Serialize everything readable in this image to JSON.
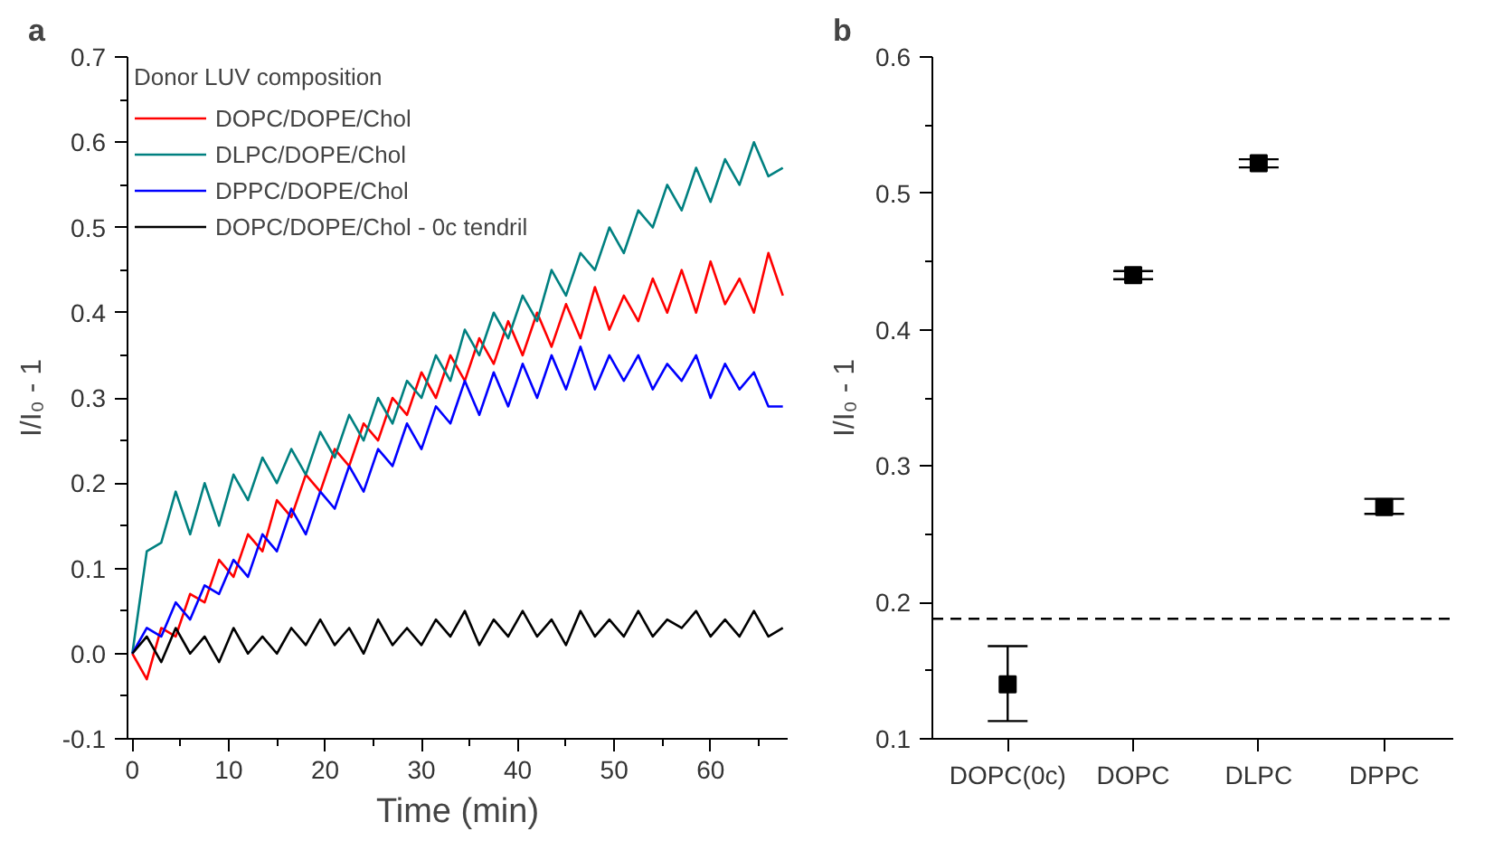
{
  "chart_data": [
    {
      "type": "line",
      "title": "a",
      "xlabel": "Time (min)",
      "ylabel": "I/I₀ - 1",
      "legend_title": "Donor LUV composition",
      "legend": "top left",
      "grid": false,
      "marker": "none",
      "line_style": "solid",
      "x": [
        0,
        1.5,
        3,
        4.5,
        6,
        7.5,
        9,
        10.5,
        12,
        13.5,
        15,
        16.5,
        18,
        19.5,
        21,
        22.5,
        24,
        25.5,
        27,
        28.5,
        30,
        31.5,
        33,
        34.5,
        36,
        37.5,
        39,
        40.5,
        42,
        43.5,
        45,
        46.5,
        48,
        49.5,
        51,
        52.5,
        54,
        55.5,
        57,
        58.5,
        60,
        61.5,
        63,
        64.5,
        66,
        67.5
      ],
      "series": [
        {
          "name": "DOPC/DOPE/Chol",
          "color": "#ff0000",
          "values": [
            0.0,
            -0.03,
            0.03,
            0.02,
            0.07,
            0.06,
            0.11,
            0.09,
            0.14,
            0.12,
            0.18,
            0.16,
            0.21,
            0.19,
            0.24,
            0.22,
            0.27,
            0.25,
            0.3,
            0.28,
            0.33,
            0.3,
            0.35,
            0.32,
            0.37,
            0.34,
            0.39,
            0.35,
            0.4,
            0.36,
            0.41,
            0.37,
            0.43,
            0.38,
            0.42,
            0.39,
            0.44,
            0.4,
            0.45,
            0.4,
            0.46,
            0.41,
            0.44,
            0.4,
            0.47,
            0.42
          ]
        },
        {
          "name": "DLPC/DOPE/Chol",
          "color": "#008080",
          "values": [
            0.0,
            0.12,
            0.13,
            0.19,
            0.14,
            0.2,
            0.15,
            0.21,
            0.18,
            0.23,
            0.2,
            0.24,
            0.21,
            0.26,
            0.23,
            0.28,
            0.25,
            0.3,
            0.27,
            0.32,
            0.3,
            0.35,
            0.32,
            0.38,
            0.35,
            0.4,
            0.37,
            0.42,
            0.39,
            0.45,
            0.42,
            0.47,
            0.45,
            0.5,
            0.47,
            0.52,
            0.5,
            0.55,
            0.52,
            0.57,
            0.53,
            0.58,
            0.55,
            0.6,
            0.56,
            0.57
          ]
        },
        {
          "name": "DPPC/DOPE/Chol",
          "color": "#0000ff",
          "values": [
            0.0,
            0.03,
            0.02,
            0.06,
            0.04,
            0.08,
            0.07,
            0.11,
            0.09,
            0.14,
            0.12,
            0.17,
            0.14,
            0.19,
            0.17,
            0.22,
            0.19,
            0.24,
            0.22,
            0.27,
            0.24,
            0.29,
            0.27,
            0.32,
            0.28,
            0.33,
            0.29,
            0.34,
            0.3,
            0.35,
            0.31,
            0.36,
            0.31,
            0.35,
            0.32,
            0.35,
            0.31,
            0.34,
            0.32,
            0.35,
            0.3,
            0.34,
            0.31,
            0.33,
            0.29,
            0.29
          ]
        },
        {
          "name": "DOPC/DOPE/Chol - 0c tendril",
          "color": "#000000",
          "values": [
            0.0,
            0.02,
            -0.01,
            0.03,
            0.0,
            0.02,
            -0.01,
            0.03,
            0.0,
            0.02,
            0.0,
            0.03,
            0.01,
            0.04,
            0.01,
            0.03,
            0.0,
            0.04,
            0.01,
            0.03,
            0.01,
            0.04,
            0.02,
            0.05,
            0.01,
            0.04,
            0.02,
            0.05,
            0.02,
            0.04,
            0.01,
            0.05,
            0.02,
            0.04,
            0.02,
            0.05,
            0.02,
            0.04,
            0.03,
            0.05,
            0.02,
            0.04,
            0.02,
            0.05,
            0.02,
            0.03
          ]
        }
      ],
      "xlim": [
        -0.5,
        68
      ],
      "ylim": [
        -0.1,
        0.7
      ],
      "xticks": [
        0,
        {
          "value": 5,
          "label": null
        },
        10,
        {
          "value": 15,
          "label": null
        },
        20,
        {
          "value": 25,
          "label": null
        },
        30,
        {
          "value": 35,
          "label": null
        },
        40,
        {
          "value": 45,
          "label": null
        },
        50,
        {
          "value": 55,
          "label": null
        },
        60,
        {
          "value": 65,
          "label": null
        }
      ],
      "yticks": [
        {
          "value": -0.1,
          "label": "-0.1"
        },
        {
          "value": -0.05,
          "label": null
        },
        {
          "value": 0,
          "label": "0.0"
        },
        {
          "value": 0.05,
          "label": null
        },
        0.1,
        {
          "value": 0.15,
          "label": null
        },
        0.2,
        {
          "value": 0.25,
          "label": null
        },
        0.3,
        {
          "value": 0.35,
          "label": null
        },
        0.4,
        {
          "value": 0.45,
          "label": null
        },
        0.5,
        {
          "value": 0.55,
          "label": null
        },
        0.6,
        {
          "value": 0.65,
          "label": null
        },
        0.7
      ]
    },
    {
      "type": "scatter",
      "title": "b",
      "ylabel": "I/I₀ - 1",
      "grid": false,
      "marker": "square",
      "color": "#000000",
      "categories": [
        "DOPC(0c)",
        "DOPC",
        "DLPC",
        "DPPC"
      ],
      "values": [
        0.14,
        0.44,
        0.522,
        0.27
      ],
      "errors": [
        [
          0.113,
          0.168
        ],
        [
          0.437,
          0.443
        ],
        [
          0.519,
          0.525
        ],
        [
          0.265,
          0.276
        ]
      ],
      "ylim": [
        0.1,
        0.6
      ],
      "yticks": [
        0.1,
        {
          "value": 0.15,
          "label": null
        },
        0.2,
        {
          "value": 0.25,
          "label": null
        },
        0.3,
        {
          "value": 0.35,
          "label": null
        },
        0.4,
        {
          "value": 0.45,
          "label": null
        },
        0.5,
        {
          "value": 0.55,
          "label": null
        },
        0.6
      ],
      "ref_lines": [
        {
          "axis": "y",
          "value": 0.188,
          "line_style": "dashed",
          "color": "#000000"
        }
      ]
    }
  ]
}
